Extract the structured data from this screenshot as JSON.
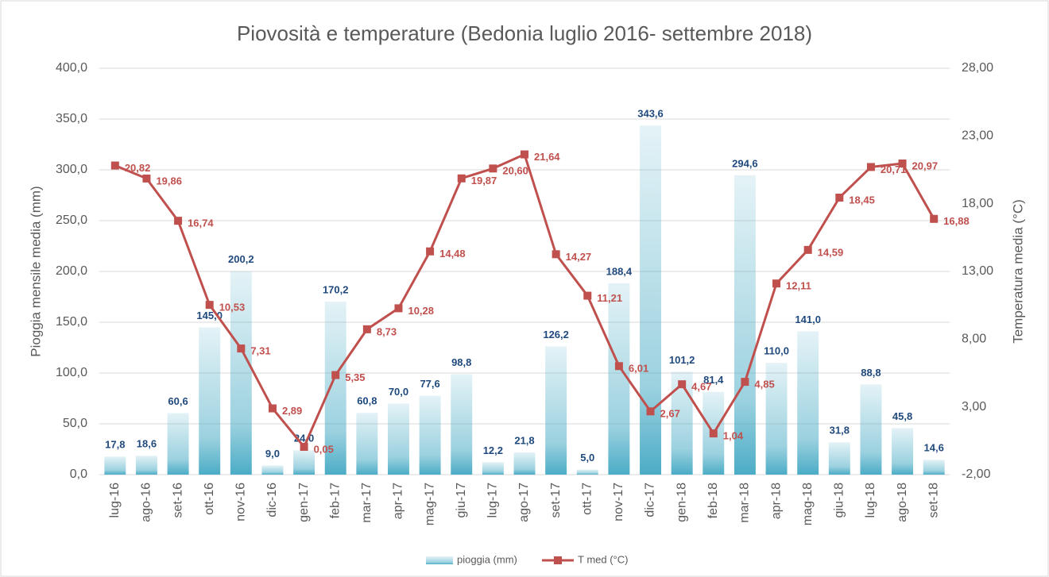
{
  "chart_data": {
    "type": "bar_line",
    "title": "Piovosità e temperature (Bedonia luglio 2016- settembre 2018)",
    "ylabel": "Pioggia mensile media (mm)",
    "y2label": "Temperatura media (°C)",
    "categories": [
      "lug-16",
      "ago-16",
      "set-16",
      "ott-16",
      "nov-16",
      "dic-16",
      "gen-17",
      "feb-17",
      "mar-17",
      "apr-17",
      "mag-17",
      "giu-17",
      "lug-17",
      "ago-17",
      "set-17",
      "ott-17",
      "nov-17",
      "dic-17",
      "gen-18",
      "feb-18",
      "mar-18",
      "apr-18",
      "mag-18",
      "giu-18",
      "lug-18",
      "ago-18",
      "set-18"
    ],
    "series": [
      {
        "name": "pioggia (mm)",
        "type": "bar",
        "axis": "y",
        "color": "#4bacc6",
        "values": [
          17.8,
          18.6,
          60.6,
          145.0,
          200.2,
          9.0,
          24.0,
          170.2,
          60.8,
          70.0,
          77.6,
          98.8,
          12.2,
          21.8,
          126.2,
          5.0,
          188.4,
          343.6,
          101.2,
          81.4,
          294.6,
          110.0,
          141.0,
          31.8,
          88.8,
          45.8,
          14.6
        ],
        "value_labels": [
          "17,8",
          "18,6",
          "60,6",
          "145,0",
          "200,2",
          "9,0",
          "24,0",
          "170,2",
          "60,8",
          "70,0",
          "77,6",
          "98,8",
          "12,2",
          "21,8",
          "126,2",
          "5,0",
          "188,4",
          "343,6",
          "101,2",
          "81,4",
          "294,6",
          "110,0",
          "141,0",
          "31,8",
          "88,8",
          "45,8",
          "14,6"
        ]
      },
      {
        "name": "T med (°C)",
        "type": "line",
        "axis": "y2",
        "color": "#c0504d",
        "values": [
          20.82,
          19.86,
          16.74,
          10.53,
          7.31,
          2.89,
          0.05,
          5.35,
          8.73,
          10.28,
          14.48,
          19.87,
          20.6,
          21.64,
          14.27,
          11.21,
          6.01,
          2.67,
          4.67,
          1.04,
          4.85,
          12.11,
          14.59,
          18.45,
          20.71,
          20.97,
          16.88
        ],
        "value_labels": [
          "20,82",
          "19,86",
          "16,74",
          "10,53",
          "7,31",
          "2,89",
          "0,05",
          "5,35",
          "8,73",
          "10,28",
          "14,48",
          "19,87",
          "20,60",
          "21,64",
          "14,27",
          "11,21",
          "6,01",
          "2,67",
          "4,67",
          "1,04",
          "4,85",
          "12,11",
          "14,59",
          "18,45",
          "20,71",
          "20,97",
          "16,88"
        ]
      }
    ],
    "ylim": [
      0,
      400
    ],
    "yticks": [
      {
        "value": 0,
        "label": "0,0"
      },
      {
        "value": 50,
        "label": "50,0"
      },
      {
        "value": 100,
        "label": "100,0"
      },
      {
        "value": 150,
        "label": "150,0"
      },
      {
        "value": 200,
        "label": "200,0"
      },
      {
        "value": 250,
        "label": "250,0"
      },
      {
        "value": 300,
        "label": "300,0"
      },
      {
        "value": 350,
        "label": "350,0"
      },
      {
        "value": 400,
        "label": "400,0"
      }
    ],
    "y2lim": [
      -2,
      28
    ],
    "y2ticks": [
      {
        "value": -2,
        "label": "-2,00"
      },
      {
        "value": 3,
        "label": "3,00"
      },
      {
        "value": 8,
        "label": "8,00"
      },
      {
        "value": 13,
        "label": "13,00"
      },
      {
        "value": 18,
        "label": "18,00"
      },
      {
        "value": 23,
        "label": "23,00"
      },
      {
        "value": 28,
        "label": "28,00"
      }
    ],
    "grid": true,
    "legend": "bottom"
  }
}
